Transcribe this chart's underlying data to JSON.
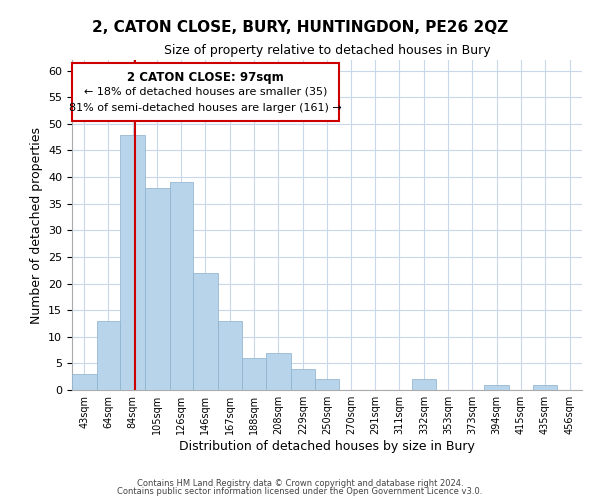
{
  "title": "2, CATON CLOSE, BURY, HUNTINGDON, PE26 2QZ",
  "subtitle": "Size of property relative to detached houses in Bury",
  "xlabel": "Distribution of detached houses by size in Bury",
  "ylabel": "Number of detached properties",
  "bar_color": "#b8d4ea",
  "vline_color": "#cc0000",
  "vline_x": 97,
  "categories": [
    "43sqm",
    "64sqm",
    "84sqm",
    "105sqm",
    "126sqm",
    "146sqm",
    "167sqm",
    "188sqm",
    "208sqm",
    "229sqm",
    "250sqm",
    "270sqm",
    "291sqm",
    "311sqm",
    "332sqm",
    "353sqm",
    "373sqm",
    "394sqm",
    "415sqm",
    "435sqm",
    "456sqm"
  ],
  "bin_edges": [
    43,
    64,
    84,
    105,
    126,
    146,
    167,
    188,
    208,
    229,
    250,
    270,
    291,
    311,
    332,
    353,
    373,
    394,
    415,
    435,
    456
  ],
  "values": [
    3,
    13,
    48,
    38,
    39,
    22,
    13,
    6,
    7,
    4,
    2,
    0,
    0,
    0,
    2,
    0,
    0,
    1,
    0,
    1
  ],
  "ylim": [
    0,
    62
  ],
  "yticks": [
    0,
    5,
    10,
    15,
    20,
    25,
    30,
    35,
    40,
    45,
    50,
    55,
    60
  ],
  "annotation_title": "2 CATON CLOSE: 97sqm",
  "annotation_line1": "← 18% of detached houses are smaller (35)",
  "annotation_line2": "81% of semi-detached houses are larger (161) →",
  "footer1": "Contains HM Land Registry data © Crown copyright and database right 2024.",
  "footer2": "Contains public sector information licensed under the Open Government Licence v3.0.",
  "background_color": "#ffffff",
  "grid_color": "#c8d8e8",
  "box_color": "#cc0000"
}
